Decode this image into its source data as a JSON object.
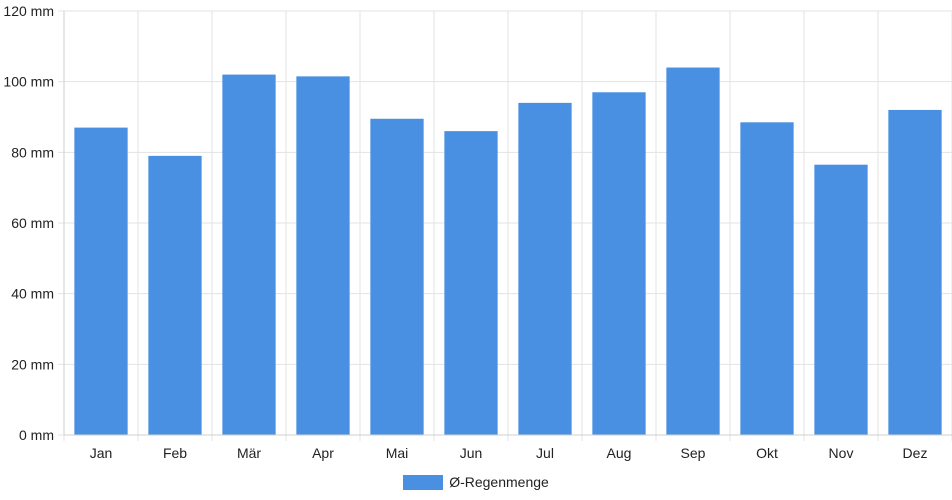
{
  "chart_data": {
    "type": "bar",
    "categories": [
      "Jan",
      "Feb",
      "Mär",
      "Apr",
      "Mai",
      "Jun",
      "Jul",
      "Aug",
      "Sep",
      "Okt",
      "Nov",
      "Dez"
    ],
    "series": [
      {
        "name": "Ø-Regenmenge",
        "values": [
          87,
          79,
          102,
          101.5,
          89.5,
          86,
          94,
          97,
          104,
          88.5,
          76.5,
          92
        ],
        "color": "#4a90e2"
      }
    ],
    "yticks": [
      "0 mm",
      "20 mm",
      "40 mm",
      "60 mm",
      "80 mm",
      "100 mm",
      "120 mm"
    ],
    "ylim": [
      0,
      120
    ],
    "grid": true,
    "legend_position": "bottom-center"
  }
}
